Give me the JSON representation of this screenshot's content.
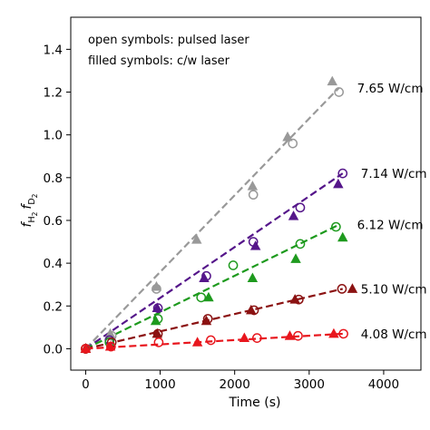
{
  "chart_data": {
    "type": "scatter",
    "xlabel": "Time (s)",
    "ylabel_main": "f",
    "ylabel_sub1": "H",
    "ylabel_sub1_2": "2",
    "ylabel_sub2": "D",
    "ylabel_sub2_2": "2",
    "xlim": [
      -200,
      4500
    ],
    "ylim": [
      -0.1,
      1.55
    ],
    "xticks": [
      0,
      1000,
      2000,
      3000,
      4000
    ],
    "yticks": [
      0.0,
      0.2,
      0.4,
      0.6,
      0.8,
      1.0,
      1.2,
      1.4
    ],
    "annotations": [
      "open symbols: pulsed laser",
      "filled symbols: c/w laser"
    ],
    "series": [
      {
        "name": "7.65 W/cm",
        "color": "#999999",
        "open_x": [
          0,
          350,
          950,
          2250,
          2780,
          3400
        ],
        "open_y": [
          0.0,
          0.06,
          0.28,
          0.72,
          0.96,
          1.2
        ],
        "filled_x": [
          0,
          330,
          950,
          1490,
          2240,
          2710,
          3310
        ],
        "filled_y": [
          0.0,
          0.07,
          0.29,
          0.51,
          0.76,
          0.99,
          1.25
        ],
        "fit_x": [
          0,
          3400
        ],
        "fit_y": [
          0.0,
          1.22
        ]
      },
      {
        "name": "7.14 W/cm",
        "color": "#55168a",
        "open_x": [
          0,
          320,
          970,
          1620,
          2250,
          2880,
          3450
        ],
        "open_y": [
          0.0,
          0.04,
          0.19,
          0.34,
          0.5,
          0.66,
          0.82
        ],
        "filled_x": [
          0,
          960,
          1590,
          2280,
          2790,
          3390
        ],
        "filled_y": [
          0.0,
          0.19,
          0.33,
          0.48,
          0.62,
          0.77
        ],
        "fit_x": [
          0,
          3450
        ],
        "fit_y": [
          0.0,
          0.82
        ]
      },
      {
        "name": "6.12 W/cm",
        "color": "#1e9a1e",
        "open_x": [
          0,
          320,
          970,
          1550,
          1980,
          2880,
          3360
        ],
        "open_y": [
          0.0,
          0.03,
          0.14,
          0.24,
          0.39,
          0.49,
          0.57
        ],
        "filled_x": [
          0,
          940,
          1650,
          2240,
          2820,
          3450
        ],
        "filled_y": [
          0.0,
          0.13,
          0.24,
          0.33,
          0.42,
          0.52
        ],
        "fit_x": [
          0,
          3400
        ],
        "fit_y": [
          0.0,
          0.58
        ]
      },
      {
        "name": "5.10 W/cm",
        "color": "#8b1212",
        "open_x": [
          0,
          350,
          970,
          1640,
          2260,
          2860,
          3440
        ],
        "open_y": [
          0.0,
          0.03,
          0.07,
          0.14,
          0.18,
          0.23,
          0.28
        ],
        "filled_x": [
          0,
          960,
          1620,
          2220,
          2810,
          3580
        ],
        "filled_y": [
          0.0,
          0.07,
          0.13,
          0.18,
          0.23,
          0.28
        ],
        "fit_x": [
          0,
          3450
        ],
        "fit_y": [
          0.0,
          0.28
        ]
      },
      {
        "name": "4.08 W/cm",
        "color": "#e8161d",
        "open_x": [
          0,
          340,
          980,
          1680,
          2300,
          2850,
          3460
        ],
        "open_y": [
          0.0,
          0.01,
          0.03,
          0.04,
          0.05,
          0.06,
          0.07
        ],
        "filled_x": [
          0,
          330,
          1500,
          2130,
          2740,
          3330
        ],
        "filled_y": [
          0.0,
          0.01,
          0.03,
          0.05,
          0.06,
          0.07
        ],
        "fit_x": [
          0,
          3450
        ],
        "fit_y": [
          0.0,
          0.07
        ]
      }
    ]
  }
}
